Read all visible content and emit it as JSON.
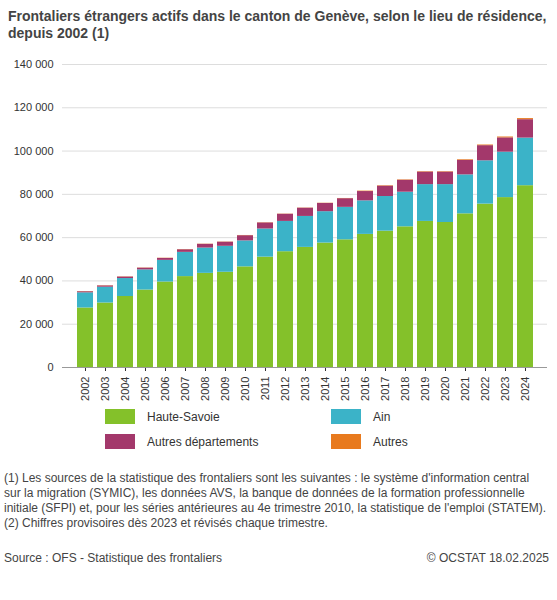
{
  "chart_data": {
    "type": "bar",
    "stacked": true,
    "grid": true,
    "title": "Frontaliers étrangers actifs dans le canton de Genève, selon le lieu de résidence, depuis 2002 (1)",
    "categories": [
      "2002",
      "2003",
      "2004",
      "2005",
      "2006",
      "2007",
      "2008",
      "2009",
      "2010",
      "2011",
      "2012",
      "2013",
      "2014",
      "2015",
      "2016",
      "2017",
      "2018",
      "2019",
      "2020",
      "2021",
      "2022",
      "2023",
      "2024"
    ],
    "series": [
      {
        "name": "Haute-Savoie",
        "color": "#84c12a",
        "values": [
          27500,
          29800,
          32800,
          35800,
          39500,
          42000,
          43500,
          44000,
          46500,
          51000,
          53500,
          55500,
          57500,
          59000,
          61500,
          63000,
          65000,
          67500,
          67000,
          71000,
          75500,
          78500,
          84000
        ]
      },
      {
        "name": "Ain",
        "color": "#3bb3c8",
        "values": [
          7000,
          7300,
          8300,
          9300,
          10000,
          11200,
          11700,
          12000,
          12000,
          13000,
          14000,
          14300,
          14500,
          15000,
          15500,
          16000,
          16000,
          17000,
          17500,
          18000,
          20000,
          21000,
          22000
        ]
      },
      {
        "name": "Autres départements",
        "color": "#a3386b",
        "values": [
          500,
          600,
          700,
          800,
          900,
          1200,
          1700,
          1900,
          2400,
          2800,
          3300,
          3800,
          3800,
          4000,
          4300,
          4800,
          5500,
          5800,
          5800,
          6700,
          7000,
          6600,
          8500
        ]
      },
      {
        "name": "Autres",
        "color": "#e87a1e",
        "values": [
          100,
          100,
          100,
          100,
          100,
          100,
          100,
          100,
          100,
          100,
          100,
          100,
          100,
          100,
          200,
          200,
          200,
          200,
          200,
          300,
          300,
          400,
          500
        ]
      }
    ],
    "ylim": [
      0,
      140000
    ],
    "yticks": [
      0,
      {
        "value": 20000,
        "label": "20 000"
      },
      {
        "value": 40000,
        "label": "40 000"
      },
      {
        "value": 60000,
        "label": "60 000"
      },
      {
        "value": 80000,
        "label": "80 000"
      },
      {
        "value": 100000,
        "label": "100 000"
      },
      {
        "value": 120000,
        "label": "120 000"
      },
      {
        "value": 140000,
        "label": "140 000"
      }
    ],
    "notes": [
      "(1) Les sources de la statistique des frontaliers sont les suivantes : le système d'information central sur la migration (SYMIC), les données AVS, la banque de données de la formation professionnelle initiale (SFPI) et, pour les séries antérieures au 4e trimestre 2010, la statistique de l'emploi (STATEM).",
      "(2) Chiffres provisoires dès 2023 et révisés chaque trimestre."
    ],
    "source": "Source : OFS - Statistique des frontaliers",
    "credit": "© OCSTAT 18.02.2025"
  }
}
